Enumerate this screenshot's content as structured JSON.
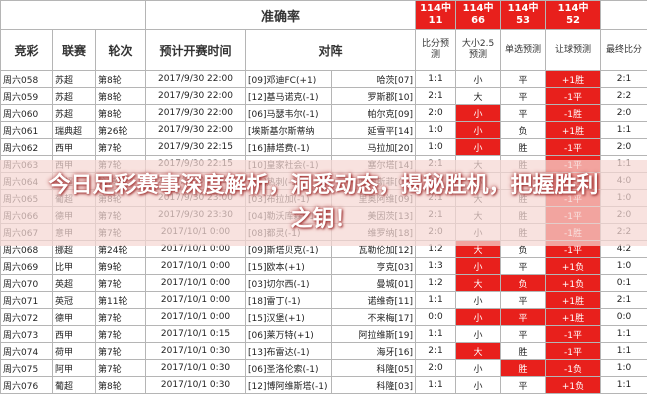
{
  "header": {
    "accuracy_label": "准确率",
    "accuracy": [
      {
        "top": "114中",
        "count": "11"
      },
      {
        "top": "114中",
        "count": "66"
      },
      {
        "top": "114中",
        "count": "53"
      },
      {
        "top": "114中",
        "count": "52"
      }
    ]
  },
  "table": {
    "columns": [
      "竞彩",
      "联赛",
      "轮次",
      "预计开赛时间",
      "对阵",
      "比分预测",
      "大小2.5预测",
      "单选预测",
      "让球预测",
      "最终比分"
    ],
    "rows": [
      [
        "周六058",
        "苏超",
        "第8轮",
        "2017/9/30 22:00",
        "[09]邓迪FC(+1)",
        "哈茨[07]",
        "1:1",
        "小",
        "平",
        "+1胜",
        "2:1"
      ],
      [
        "周六059",
        "苏超",
        "第8轮",
        "2017/9/30 22:00",
        "[12]基马诺克(-1)",
        "罗斯郡[10]",
        "2:1",
        "大",
        "平",
        "-1平",
        "2:2"
      ],
      [
        "周六060",
        "苏超",
        "第8轮",
        "2017/9/30 22:00",
        "[06]马瑟韦尔(-1)",
        "帕尔克[09]",
        "2:0",
        "小",
        "平",
        "-1胜",
        "2:0"
      ],
      [
        "周六061",
        "瑞典超",
        "第26轮",
        "2017/9/30 22:00",
        "[埃斯基尔斯蒂纳",
        "延雪平[14]",
        "1:0",
        "小",
        "负",
        "+1胜",
        "1:1"
      ],
      [
        "周六062",
        "西甲",
        "第7轮",
        "2017/9/30 22:15",
        "[16]赫塔费(-1)",
        "马拉加[20]",
        "1:0",
        "小",
        "胜",
        "-1平",
        "2:0"
      ],
      [
        "周六063",
        "西甲",
        "第7轮",
        "2017/9/30 22:15",
        "[10]皇家社会(-1)",
        "塞尔塔[14]",
        "2:1",
        "大",
        "胜",
        "-1平",
        "1:1"
      ],
      [
        "周六064",
        "英超",
        "第7轮",
        "2017/9/30 22:00",
        "[05]热刺(-1)",
        "哈德斯菲[09]",
        "2:0",
        "小",
        "胜",
        "-1胜",
        "4:0"
      ],
      [
        "周六065",
        "葡超",
        "第8轮",
        "2017/9/30 23:00",
        "[03]布拉加(-1)",
        "里奥阿维[09]",
        "2:1",
        "大",
        "胜",
        "-1平",
        "1:0"
      ],
      [
        "周六066",
        "德甲",
        "第7轮",
        "2017/9/30 23:30",
        "[04]勒沃库森(-1)",
        "美因茨[13]",
        "2:1",
        "大",
        "胜",
        "-1平",
        "2:0"
      ],
      [
        "周六067",
        "意甲",
        "第7轮",
        "2017/10/1 0:00",
        "[08]都灵(-1)",
        "维罗纳[18]",
        "2:0",
        "小",
        "胜",
        "-1胜",
        "2:2"
      ],
      [
        "周六068",
        "挪超",
        "第24轮",
        "2017/10/1 0:00",
        "[09]斯塔贝克(-1)",
        "瓦勒伦加[12]",
        "1:2",
        "大",
        "负",
        "-1平",
        "4:2"
      ],
      [
        "周六069",
        "比甲",
        "第9轮",
        "2017/10/1 0:00",
        "[15]欧本(+1)",
        "亨克[03]",
        "1:3",
        "小",
        "平",
        "+1负",
        "1:0"
      ],
      [
        "周六070",
        "英超",
        "第7轮",
        "2017/10/1 0:00",
        "[03]切尔西(-1)",
        "曼城[01]",
        "1:2",
        "大",
        "负",
        "+1负",
        "0:1"
      ],
      [
        "周六071",
        "英冠",
        "第11轮",
        "2017/10/1 0:00",
        "[18]雷丁(-1)",
        "诺维奇[11]",
        "1:1",
        "小",
        "平",
        "+1胜",
        "2:1"
      ],
      [
        "周六072",
        "德甲",
        "第7轮",
        "2017/10/1 0:00",
        "[15]汉堡(+1)",
        "不来梅[17]",
        "0:0",
        "小",
        "平",
        "+1胜",
        "0:0"
      ],
      [
        "周六073",
        "西甲",
        "第7轮",
        "2017/10/1 0:15",
        "[06]莱万特(+1)",
        "阿拉维斯[19]",
        "1:1",
        "小",
        "平",
        "-1平",
        "1:1"
      ],
      [
        "周六074",
        "荷甲",
        "第7轮",
        "2017/10/1 0:30",
        "[13]布雷达(-1)",
        "海牙[16]",
        "2:1",
        "大",
        "胜",
        "-1平",
        "1:1"
      ],
      [
        "周六075",
        "阿甲",
        "第7轮",
        "2017/10/1 0:30",
        "[06]圣洛伦索(-1)",
        "科隆[05]",
        "2:0",
        "小",
        "胜",
        "-1负",
        "1:0"
      ],
      [
        "周六076",
        "葡超",
        "第8轮",
        "2017/10/1 0:30",
        "[12]博阿维斯塔(-1)",
        "科隆[03]",
        "1:1",
        "小",
        "平",
        "+1负",
        "1:1"
      ]
    ]
  },
  "banner": "今日足彩赛事深度解析，洞悉动态，揭秘胜机，把握胜利之钥！"
}
